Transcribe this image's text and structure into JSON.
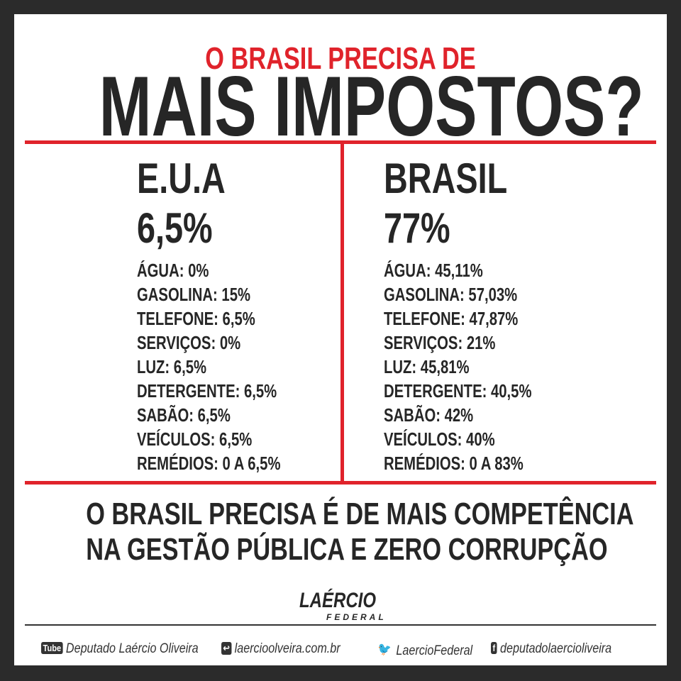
{
  "header": {
    "subtitle": "O BRASIL PRECISA DE",
    "title": "MAIS IMPOSTOS?"
  },
  "columns": [
    {
      "country": "E.U.A",
      "total": "6,5%",
      "items": [
        "ÁGUA: 0%",
        "GASOLINA: 15%",
        "TELEFONE: 6,5%",
        "SERVIÇOS: 0%",
        "LUZ: 6,5%",
        "DETERGENTE: 6,5%",
        "SABÃO: 6,5%",
        "VEÍCULOS: 6,5%",
        "REMÉDIOS: 0 A 6,5%"
      ]
    },
    {
      "country": "BRASIL",
      "total": "77%",
      "items": [
        "ÁGUA: 45,11%",
        "GASOLINA: 57,03%",
        "TELEFONE: 47,87%",
        "SERVIÇOS: 21%",
        "LUZ: 45,81%",
        "DETERGENTE: 40,5%",
        "SABÃO: 42%",
        "VEÍCULOS: 40%",
        "REMÉDIOS: 0 A 83%"
      ]
    }
  ],
  "message": {
    "lines": [
      "O BRASIL PRECISA É DE MAIS COMPETÊNCIA",
      "NA GESTÃO PÚBLICA E ZERO CORRUPÇÃO"
    ]
  },
  "logo": {
    "name": "LAÉRCIO",
    "tagline": "FEDERAL"
  },
  "social": {
    "youtube_icon": "Tube",
    "youtube": "Deputado Laércio Oliveira",
    "site": "laercioolveira.com.br",
    "twitter": "LaercioFederal",
    "facebook": "deputadolaercioliveira"
  }
}
